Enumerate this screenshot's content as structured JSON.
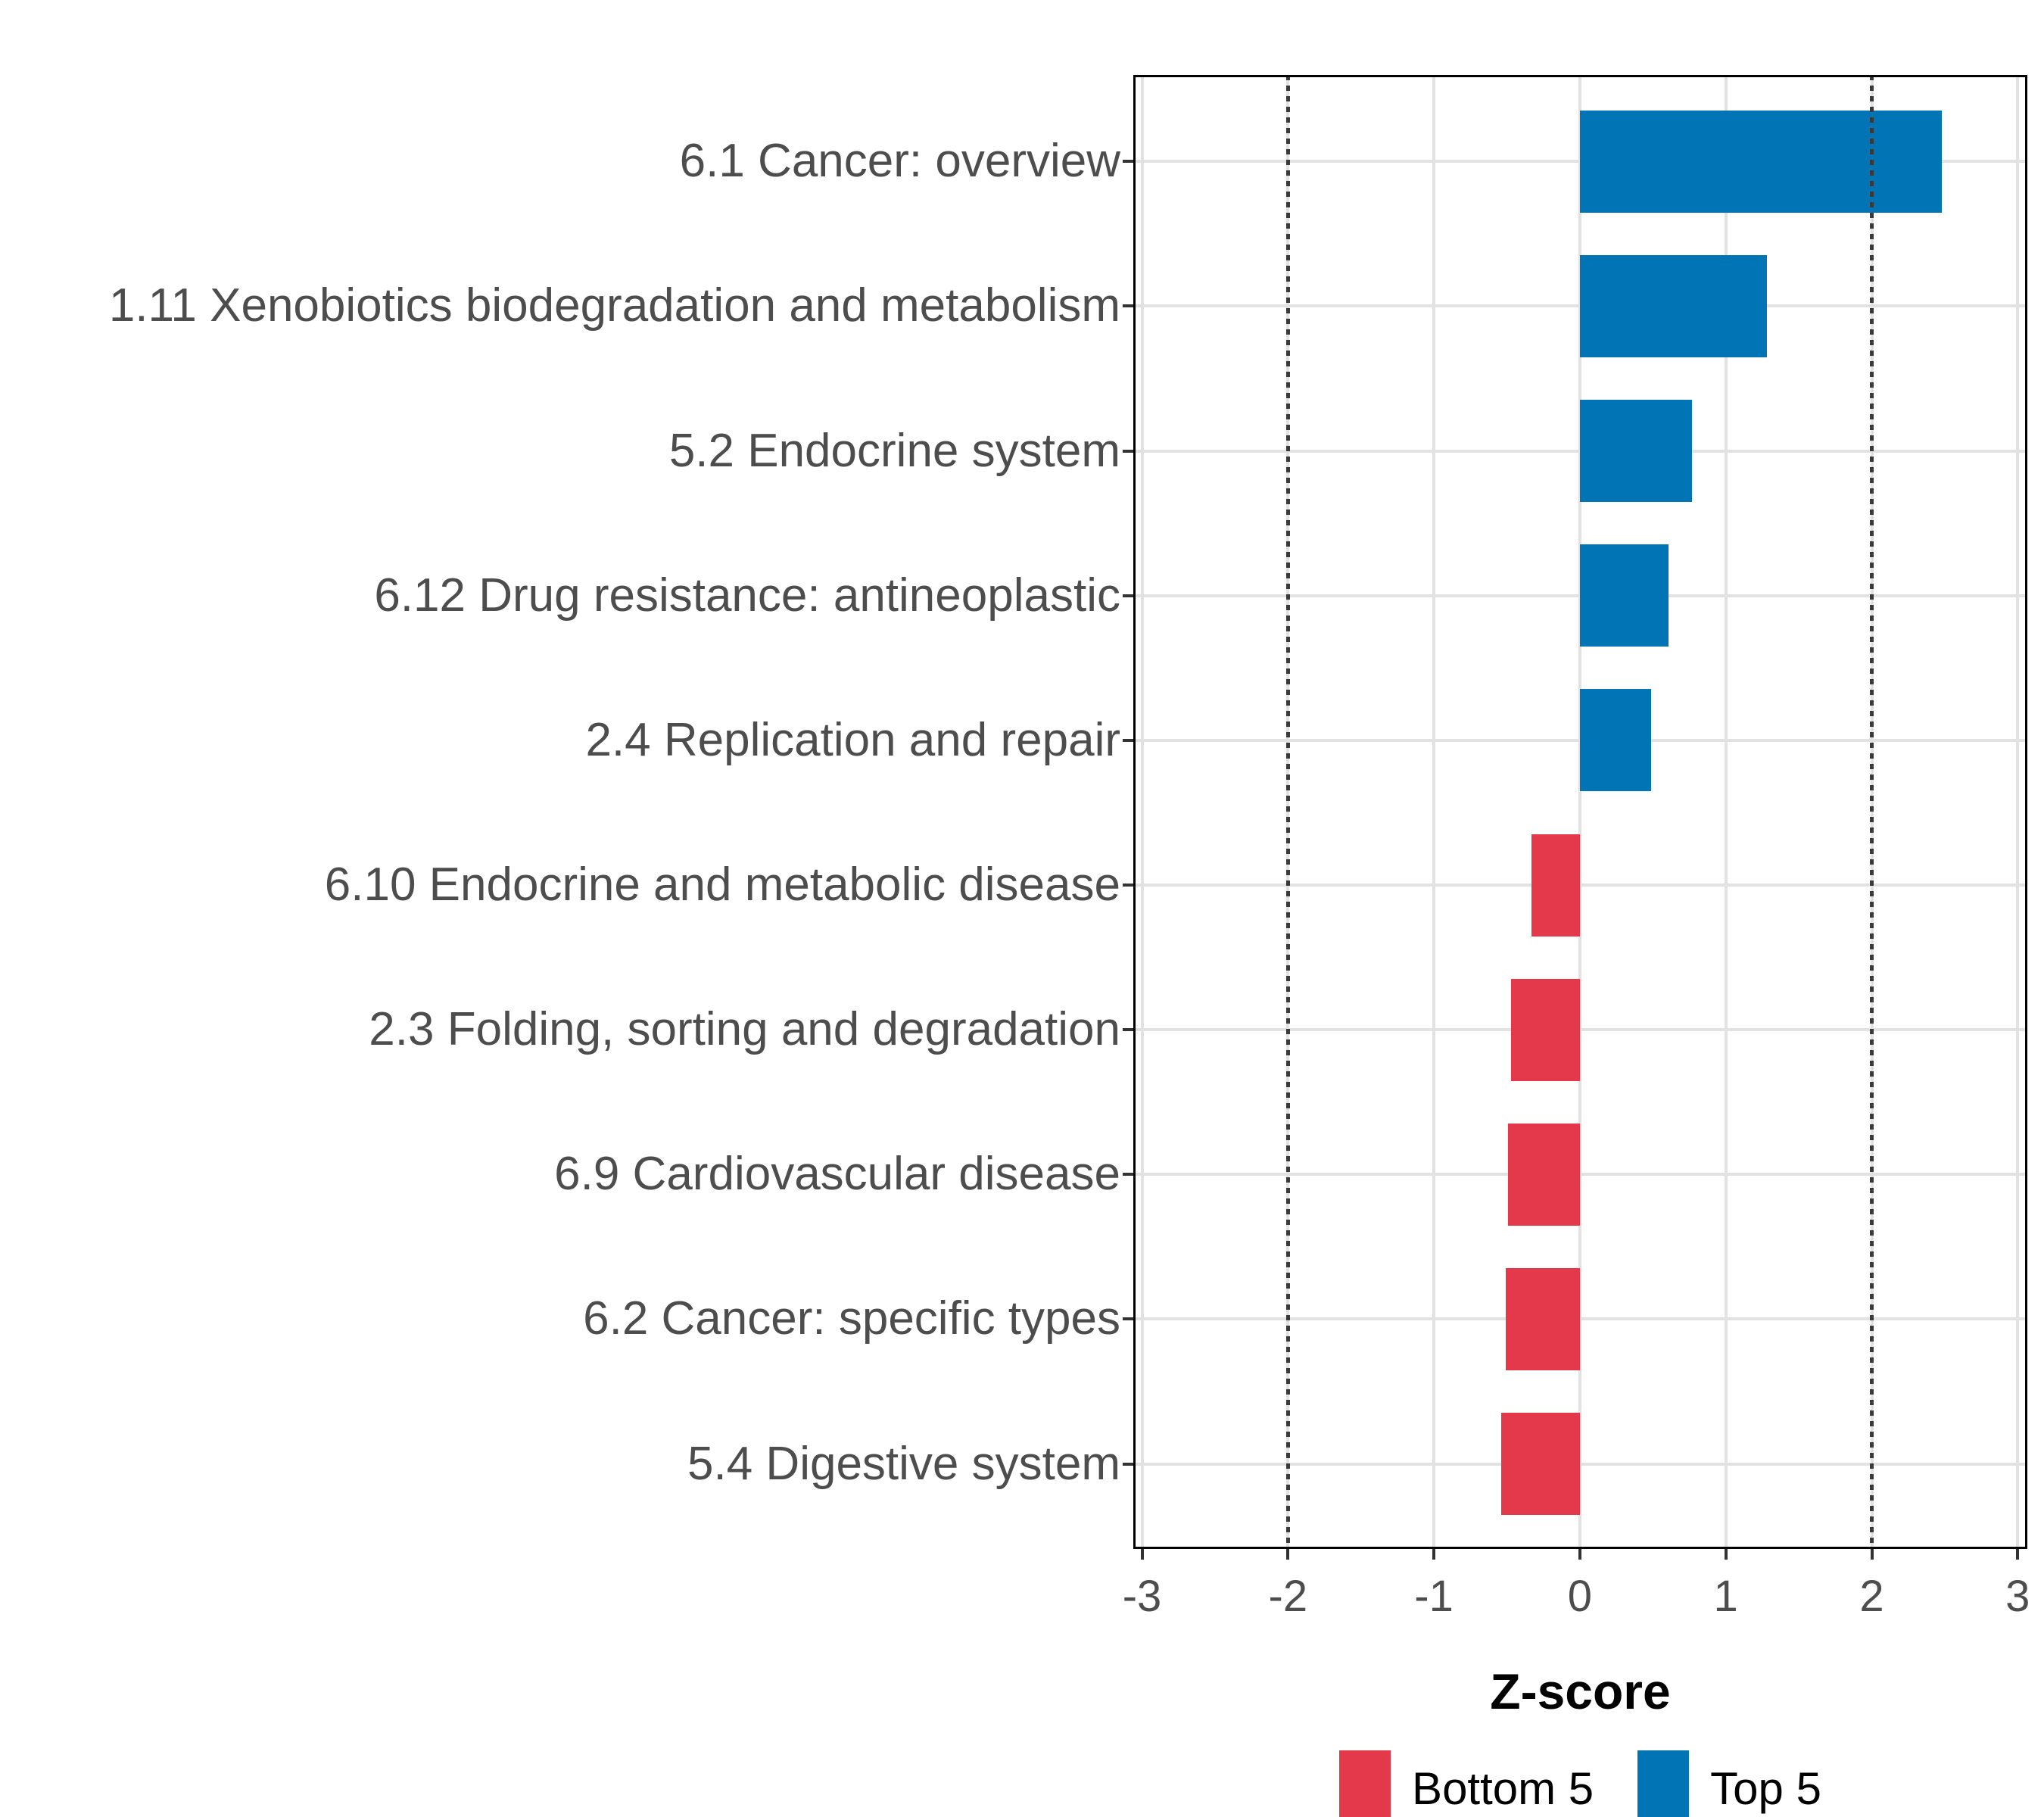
{
  "figure": {
    "background": "#ffffff"
  },
  "chart_data": {
    "type": "bar",
    "orientation": "horizontal",
    "title": "",
    "xlabel": "Z-score",
    "ylabel": "",
    "xlim": [
      -3,
      3
    ],
    "x_ticks": [
      -3,
      -2,
      -1,
      0,
      1,
      2,
      3
    ],
    "x_tick_labels": [
      "-3",
      "-2",
      "-1",
      "0",
      "1",
      "2",
      "3"
    ],
    "reference_lines": [
      -2,
      2
    ],
    "grid": true,
    "legend_position": "bottom",
    "categories": [
      "6.1 Cancer: overview",
      "1.11 Xenobiotics biodegradation and metabolism",
      "5.2 Endocrine system",
      "6.12 Drug resistance: antineoplastic",
      "2.4 Replication and repair",
      "6.10 Endocrine and metabolic disease",
      "2.3 Folding, sorting and degradation",
      "6.9 Cardiovascular disease",
      "6.2 Cancer: specific types",
      "5.4 Digestive system"
    ],
    "values": [
      2.48,
      1.28,
      0.77,
      0.61,
      0.49,
      -0.33,
      -0.47,
      -0.49,
      -0.51,
      -0.54
    ],
    "groups": [
      "Top 5",
      "Top 5",
      "Top 5",
      "Top 5",
      "Top 5",
      "Bottom 5",
      "Bottom 5",
      "Bottom 5",
      "Bottom 5",
      "Bottom 5"
    ],
    "legend": {
      "entries": [
        {
          "label": "Bottom 5",
          "color": "#e3394a"
        },
        {
          "label": "Top 5",
          "color": "#0074b5"
        }
      ]
    },
    "colors": {
      "top5": "#0074b5",
      "bottom5": "#e3394a",
      "gridline": "#e2e2e2",
      "reference_line": "#3a3a3a",
      "axis_text": "#4d4d4d",
      "axis_title": "#000000",
      "panel_border": "#000000"
    }
  }
}
